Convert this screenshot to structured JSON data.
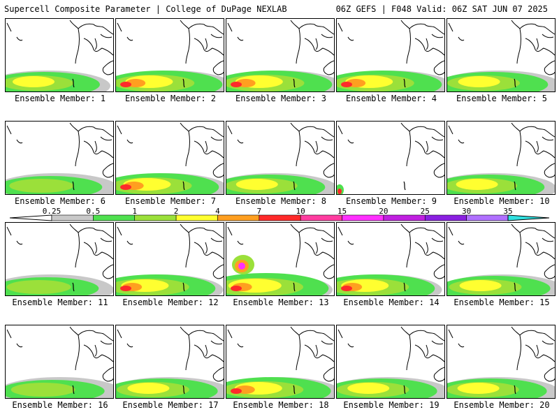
{
  "header": {
    "left": "Supercell Composite Parameter | College of DuPage NEXLAB",
    "right": "06Z GEFS | F048 Valid: 06Z SAT JUN 07 2025"
  },
  "colorbar": {
    "ticks": [
      "0.25",
      "0.5",
      "1",
      "2",
      "4",
      "7",
      "10",
      "15",
      "20",
      "25",
      "30",
      "35"
    ],
    "colors": [
      "#c8c8c8",
      "#4fe04f",
      "#9be03a",
      "#ffff30",
      "#ff9f20",
      "#ff2a2a",
      "#ff3ca0",
      "#ff30ff",
      "#c020e0",
      "#8a20e0",
      "#b070ff",
      "#30e0e0"
    ]
  },
  "members": [
    {
      "label": "Ensemble Member: 1",
      "intensity": 2
    },
    {
      "label": "Ensemble Member: 2",
      "intensity": 3
    },
    {
      "label": "Ensemble Member: 3",
      "intensity": 3
    },
    {
      "label": "Ensemble Member: 4",
      "intensity": 3
    },
    {
      "label": "Ensemble Member: 5",
      "intensity": 2
    },
    {
      "label": "Ensemble Member: 6",
      "intensity": 1
    },
    {
      "label": "Ensemble Member: 7",
      "intensity": 3
    },
    {
      "label": "Ensemble Member: 8",
      "intensity": 2
    },
    {
      "label": "Ensemble Member: 9",
      "intensity": 0
    },
    {
      "label": "Ensemble Member: 10",
      "intensity": 2
    },
    {
      "label": "Ensemble Member: 11",
      "intensity": 1
    },
    {
      "label": "Ensemble Member: 12",
      "intensity": 3
    },
    {
      "label": "Ensemble Member: 13",
      "intensity": 4
    },
    {
      "label": "Ensemble Member: 14",
      "intensity": 3
    },
    {
      "label": "Ensemble Member: 15",
      "intensity": 2
    },
    {
      "label": "Ensemble Member: 16",
      "intensity": 1
    },
    {
      "label": "Ensemble Member: 17",
      "intensity": 2
    },
    {
      "label": "Ensemble Member: 18",
      "intensity": 3
    },
    {
      "label": "Ensemble Member: 19",
      "intensity": 2
    },
    {
      "label": "Ensemble Member: 20",
      "intensity": 2
    }
  ]
}
